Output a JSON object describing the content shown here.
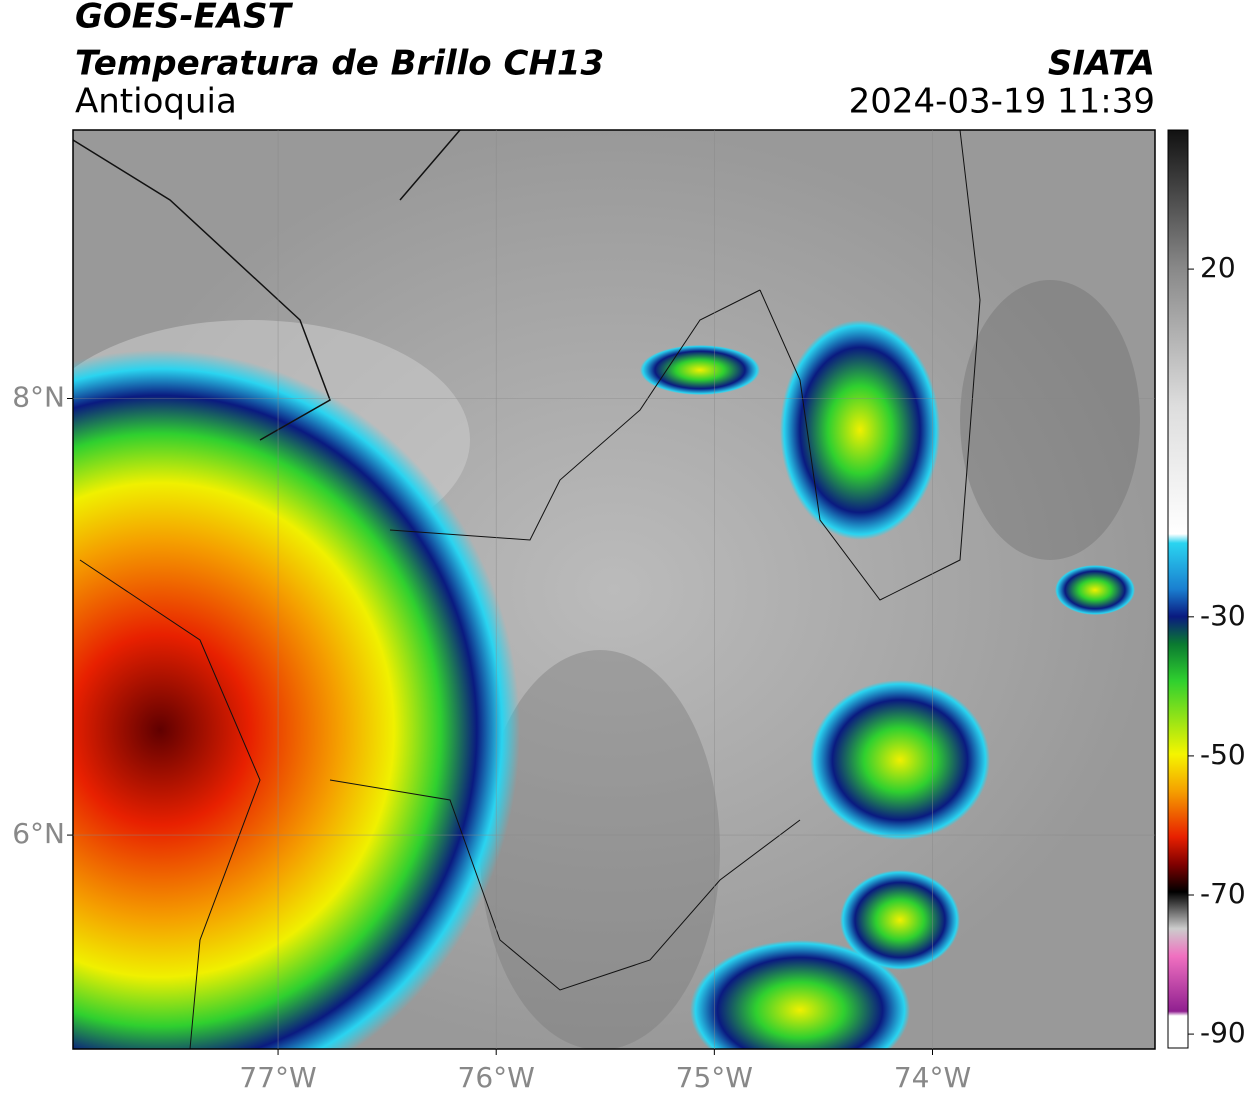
{
  "map": {
    "title": "GOES-EAST",
    "subtitle": "Temperatura de Brillo CH13",
    "region": "Antioquia",
    "source": "SIATA",
    "datetime": "2024-03-19 11:39",
    "xlim": [
      -77.94,
      -72.98
    ],
    "ylim": [
      5.02,
      9.23
    ],
    "xticks": [
      {
        "value": -77,
        "label": "77°W"
      },
      {
        "value": -76,
        "label": "76°W"
      },
      {
        "value": -75,
        "label": "75°W"
      },
      {
        "value": -74,
        "label": "74°W"
      }
    ],
    "yticks": [
      {
        "value": 6,
        "label": "6°N"
      },
      {
        "value": 8,
        "label": "8°N"
      }
    ],
    "grid": true,
    "colorbar": {
      "lim": [
        -92,
        40
      ],
      "ticks": [
        -90,
        -70,
        -50,
        -30,
        20
      ]
    }
  }
}
